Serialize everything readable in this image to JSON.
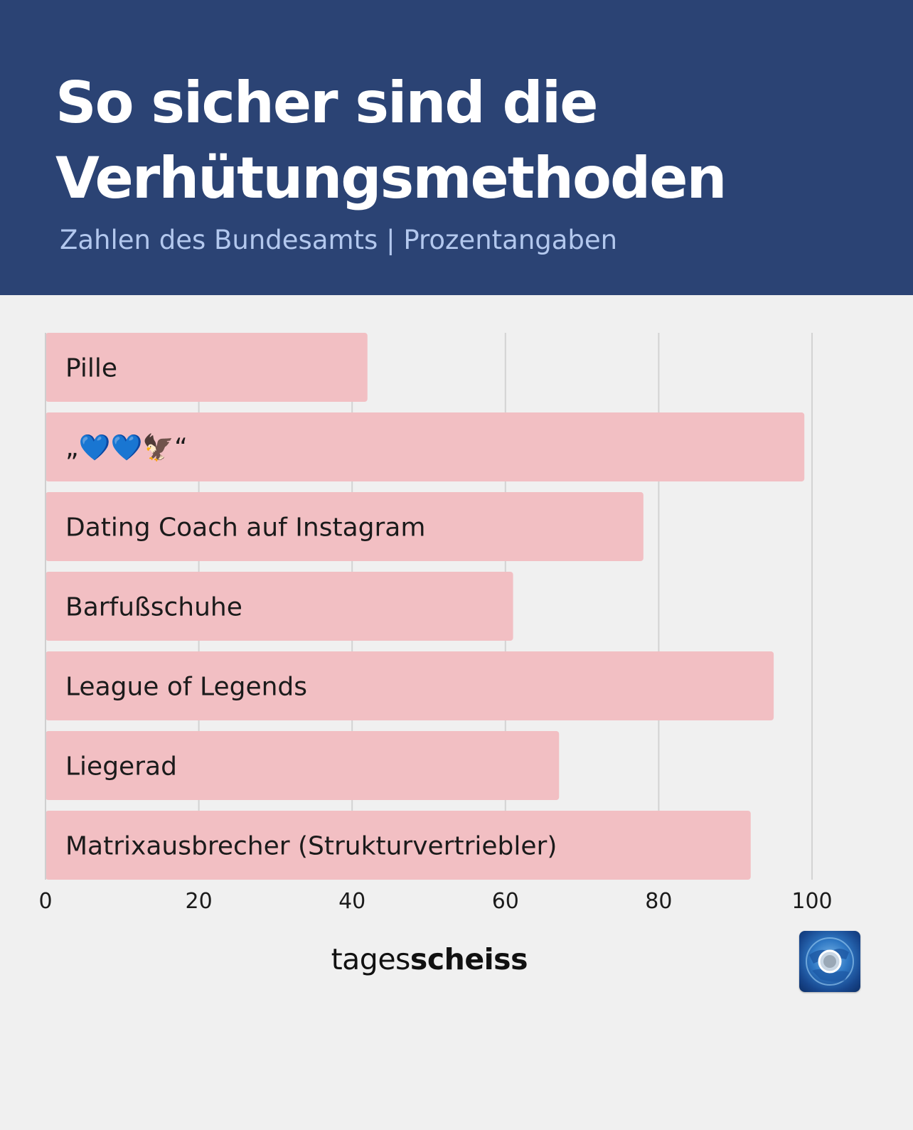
{
  "header": {
    "title": "So sicher sind die Verhütungsmethoden",
    "subtitle": "Zahlen des Bundesamts | Prozentangaben"
  },
  "brand": {
    "name_regular": "tages",
    "name_bold": "scheiss",
    "logo_icon": "globe-icon"
  },
  "colors": {
    "header_bg": "#2b4374",
    "bar": "#f2bfc3",
    "grid": "#d3d3d3",
    "background": "#f0f0f0"
  },
  "chart_data": {
    "type": "bar",
    "orientation": "horizontal",
    "categories": [
      "Pille",
      "„💙💙🦅“",
      "Dating Coach auf Instagram",
      "Barfußschuhe",
      "League of Legends",
      "Liegerad",
      "Matrixausbrecher (Strukturvertriebler)"
    ],
    "values": [
      42,
      99,
      78,
      61,
      95,
      67,
      92
    ],
    "xlim": [
      0,
      100
    ],
    "xticks": [
      0,
      20,
      40,
      60,
      80,
      100
    ],
    "xlabel": "",
    "ylabel": "",
    "grid": true,
    "legend": "none"
  }
}
